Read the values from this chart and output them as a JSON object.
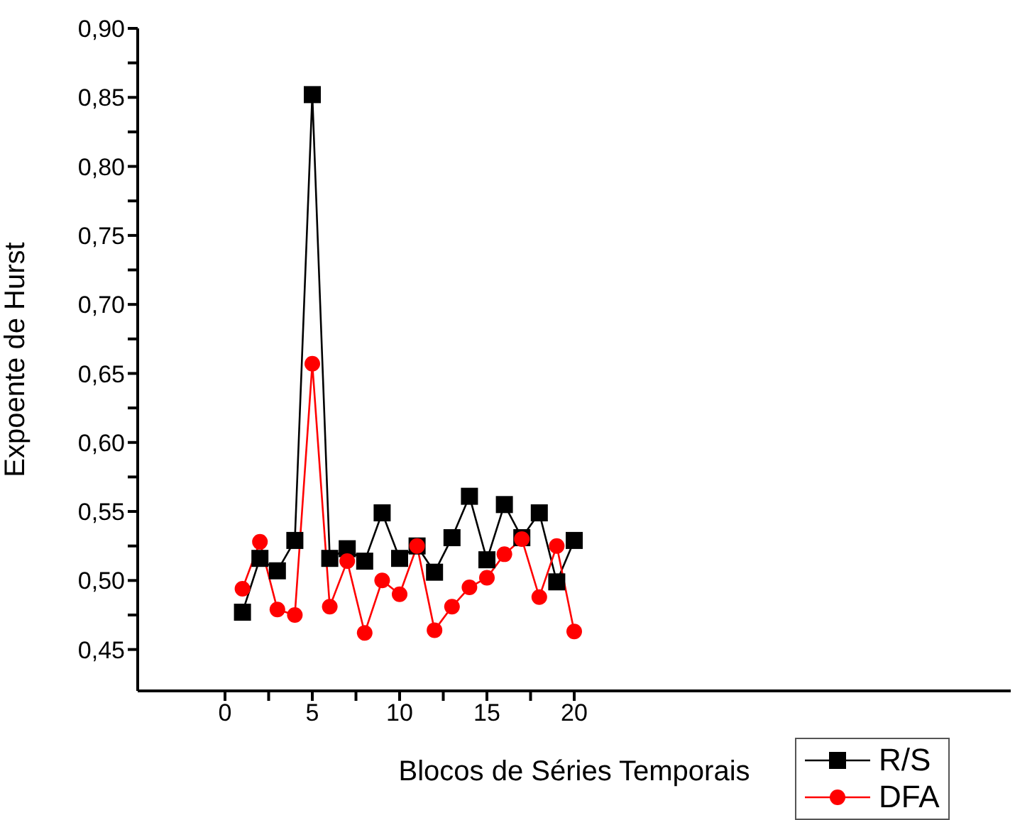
{
  "chart_data": {
    "type": "line",
    "xlabel": "Blocos de Séries Temporais",
    "ylabel": "Expoente de Hurst",
    "x": [
      1,
      2,
      3,
      4,
      5,
      6,
      7,
      8,
      9,
      10,
      11,
      12,
      13,
      14,
      15,
      16,
      17,
      18,
      19,
      20
    ],
    "series": [
      {
        "name": "R/S",
        "color": "#000000",
        "marker": "square",
        "values": [
          0.477,
          0.516,
          0.507,
          0.529,
          0.852,
          0.516,
          0.523,
          0.514,
          0.549,
          0.516,
          0.525,
          0.506,
          0.531,
          0.561,
          0.515,
          0.555,
          0.531,
          0.549,
          0.499,
          0.529
        ]
      },
      {
        "name": "DFA",
        "color": "#ff0000",
        "marker": "circle",
        "values": [
          0.494,
          0.528,
          0.479,
          0.475,
          0.657,
          0.481,
          0.514,
          0.462,
          0.5,
          0.49,
          0.525,
          0.464,
          0.481,
          0.495,
          0.502,
          0.519,
          0.53,
          0.488,
          0.525,
          0.463
        ]
      }
    ],
    "xlim": [
      -5,
      45
    ],
    "xticks": [
      0,
      {
        "value": 2.5,
        "label": null
      },
      5,
      {
        "value": 7.5,
        "label": null
      },
      10,
      {
        "value": 12.5,
        "label": null
      },
      15,
      {
        "value": 17.5,
        "label": null
      },
      20
    ],
    "ylim": [
      0.42,
      0.9
    ],
    "yticks": [
      {
        "value": 0.45,
        "label": "0,45"
      },
      {
        "value": 0.475,
        "label": null
      },
      {
        "value": 0.5,
        "label": "0,50"
      },
      {
        "value": 0.525,
        "label": null
      },
      {
        "value": 0.55,
        "label": "0,55"
      },
      {
        "value": 0.575,
        "label": null
      },
      {
        "value": 0.6,
        "label": "0,60"
      },
      {
        "value": 0.625,
        "label": null
      },
      {
        "value": 0.65,
        "label": "0,65"
      },
      {
        "value": 0.675,
        "label": null
      },
      {
        "value": 0.7,
        "label": "0,70"
      },
      {
        "value": 0.725,
        "label": null
      },
      {
        "value": 0.75,
        "label": "0,75"
      },
      {
        "value": 0.775,
        "label": null
      },
      {
        "value": 0.8,
        "label": "0,80"
      },
      {
        "value": 0.825,
        "label": null
      },
      {
        "value": 0.85,
        "label": "0,85"
      },
      {
        "value": 0.875,
        "label": null
      },
      {
        "value": 0.9,
        "label": "0,90"
      }
    ],
    "legend": "bottom right",
    "grid": false,
    "line_style": "solid"
  }
}
